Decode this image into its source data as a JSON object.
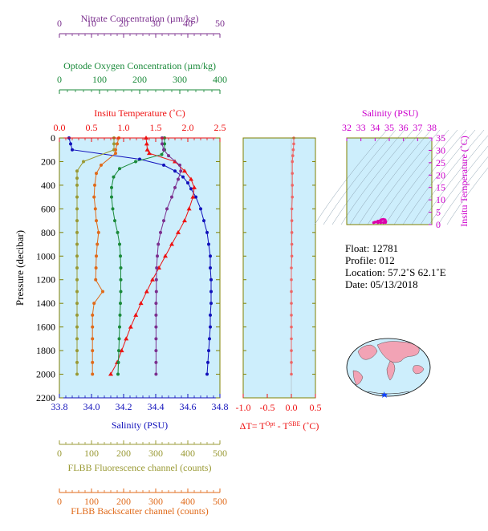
{
  "chart_data": [
    {
      "type": "line",
      "title": "",
      "ylabel": "Pressure (decibar)",
      "ylim": [
        0,
        2200
      ],
      "y_reversed": true,
      "yticks": [
        0,
        200,
        400,
        600,
        800,
        1000,
        1200,
        1400,
        1600,
        1800,
        2000,
        2200
      ],
      "grid": false,
      "axes": [
        {
          "position": "top-1",
          "label": "Nitrate Concentration (µm/kg)",
          "range": [
            0,
            50
          ],
          "ticks": [
            "0",
            "10",
            "20",
            "30",
            "40",
            "50"
          ],
          "color": "#7b2f8e"
        },
        {
          "position": "top-2",
          "label": "Optode Oxygen Concentration (µm/kg)",
          "range": [
            0,
            400
          ],
          "ticks": [
            "0",
            "100",
            "200",
            "300",
            "400"
          ],
          "color": "#1a8a3a"
        },
        {
          "position": "top-3",
          "label": "Insitu Temperature (˚C)",
          "range": [
            0,
            2.5
          ],
          "ticks": [
            "0.0",
            "0.5",
            "1.0",
            "1.5",
            "2.0",
            "2.5"
          ],
          "color": "#ee1111"
        },
        {
          "position": "bottom-1",
          "label": "Salinity (PSU)",
          "range": [
            33.8,
            34.8
          ],
          "ticks": [
            "33.8",
            "34.0",
            "34.2",
            "34.4",
            "34.6",
            "34.8"
          ],
          "color": "#1111bb"
        },
        {
          "position": "bottom-2",
          "label": "FLBB Fluorescence channel (counts)",
          "range": [
            0,
            500
          ],
          "ticks": [
            "0",
            "100",
            "200",
            "300",
            "400",
            "500"
          ],
          "color": "#999933"
        },
        {
          "position": "bottom-3",
          "label": "FLBB Backscatter channel (counts)",
          "range": [
            0,
            500
          ],
          "ticks": [
            "0",
            "100",
            "200",
            "300",
            "400",
            "500"
          ],
          "color": "#e06a1a"
        }
      ],
      "series": [
        {
          "axis": "Salinity",
          "color": "#1111bb",
          "marker": "circle",
          "points": [
            [
              33.86,
              0
            ],
            [
              33.87,
              50
            ],
            [
              33.88,
              100
            ],
            [
              34.3,
              180
            ],
            [
              34.45,
              230
            ],
            [
              34.52,
              280
            ],
            [
              34.57,
              330
            ],
            [
              34.6,
              380
            ],
            [
              34.62,
              430
            ],
            [
              34.65,
              500
            ],
            [
              34.68,
              600
            ],
            [
              34.7,
              700
            ],
            [
              34.72,
              800
            ],
            [
              34.73,
              900
            ],
            [
              34.74,
              1000
            ],
            [
              34.74,
              1100
            ],
            [
              34.745,
              1200
            ],
            [
              34.745,
              1300
            ],
            [
              34.745,
              1400
            ],
            [
              34.74,
              1500
            ],
            [
              34.74,
              1600
            ],
            [
              34.735,
              1700
            ],
            [
              34.73,
              1800
            ],
            [
              34.725,
              1900
            ],
            [
              34.72,
              2000
            ]
          ]
        },
        {
          "axis": "Temperature",
          "color": "#ee1111",
          "marker": "triangle",
          "points": [
            [
              1.35,
              0
            ],
            [
              1.36,
              50
            ],
            [
              1.37,
              100
            ],
            [
              1.4,
              130
            ],
            [
              1.8,
              200
            ],
            [
              1.95,
              280
            ],
            [
              2.05,
              350
            ],
            [
              2.1,
              420
            ],
            [
              2.08,
              500
            ],
            [
              2.02,
              600
            ],
            [
              1.95,
              700
            ],
            [
              1.85,
              800
            ],
            [
              1.75,
              900
            ],
            [
              1.65,
              1000
            ],
            [
              1.55,
              1100
            ],
            [
              1.45,
              1200
            ],
            [
              1.36,
              1300
            ],
            [
              1.27,
              1400
            ],
            [
              1.19,
              1500
            ],
            [
              1.11,
              1600
            ],
            [
              1.04,
              1700
            ],
            [
              0.97,
              1800
            ],
            [
              0.9,
              1900
            ],
            [
              0.8,
              2000
            ]
          ]
        },
        {
          "axis": "Oxygen",
          "color": "#1a8a3a",
          "marker": "circle",
          "points": [
            [
              262,
              0
            ],
            [
              262,
              50
            ],
            [
              262,
              100
            ],
            [
              255,
              140
            ],
            [
              190,
              200
            ],
            [
              150,
              260
            ],
            [
              135,
              330
            ],
            [
              130,
              420
            ],
            [
              130,
              500
            ],
            [
              133,
              600
            ],
            [
              138,
              700
            ],
            [
              145,
              800
            ],
            [
              150,
              900
            ],
            [
              152,
              1000
            ],
            [
              153,
              1100
            ],
            [
              153,
              1200
            ],
            [
              153,
              1300
            ],
            [
              152,
              1400
            ],
            [
              151,
              1500
            ],
            [
              150,
              1600
            ],
            [
              149,
              1700
            ],
            [
              148,
              1800
            ],
            [
              147,
              1900
            ],
            [
              146,
              2000
            ]
          ]
        },
        {
          "axis": "Nitrate",
          "color": "#7b2f8e",
          "marker": "circle",
          "points": [
            [
              32,
              0
            ],
            [
              32,
              50
            ],
            [
              32.5,
              100
            ],
            [
              34,
              150
            ],
            [
              37.5,
              230
            ],
            [
              37.8,
              280
            ],
            [
              37,
              350
            ],
            [
              36,
              420
            ],
            [
              35,
              500
            ],
            [
              33.5,
              600
            ],
            [
              32.5,
              700
            ],
            [
              31.5,
              800
            ],
            [
              30.8,
              900
            ],
            [
              30.5,
              1000
            ],
            [
              30.3,
              1100
            ],
            [
              30.2,
              1200
            ],
            [
              30.2,
              1300
            ],
            [
              30.1,
              1400
            ],
            [
              30.1,
              1500
            ],
            [
              30.1,
              1600
            ],
            [
              30.1,
              1700
            ],
            [
              30.1,
              1800
            ],
            [
              30.1,
              1900
            ],
            [
              30.1,
              2000
            ]
          ]
        },
        {
          "axis": "Fluorescence",
          "color": "#999933",
          "marker": "circle",
          "points": [
            [
              170,
              0
            ],
            [
              170,
              50
            ],
            [
              170,
              100
            ],
            [
              75,
              200
            ],
            [
              55,
              280
            ],
            [
              55,
              340
            ],
            [
              55,
              400
            ],
            [
              55,
              500
            ],
            [
              55,
              600
            ],
            [
              55,
              700
            ],
            [
              55,
              800
            ],
            [
              55,
              900
            ],
            [
              55,
              1000
            ],
            [
              55,
              1100
            ],
            [
              55,
              1200
            ],
            [
              55,
              1300
            ],
            [
              55,
              1400
            ],
            [
              55,
              1500
            ],
            [
              55,
              1600
            ],
            [
              55,
              1700
            ],
            [
              55,
              1800
            ],
            [
              55,
              1900
            ],
            [
              55,
              2000
            ]
          ]
        },
        {
          "axis": "Backscatter",
          "color": "#e06a1a",
          "marker": "circle",
          "points": [
            [
              185,
              0
            ],
            [
              180,
              50
            ],
            [
              175,
              100
            ],
            [
              175,
              130
            ],
            [
              130,
              230
            ],
            [
              115,
              300
            ],
            [
              110,
              400
            ],
            [
              108,
              500
            ],
            [
              112,
              600
            ],
            [
              115,
              700
            ],
            [
              122,
              800
            ],
            [
              118,
              900
            ],
            [
              115,
              1000
            ],
            [
              114,
              1100
            ],
            [
              113,
              1200
            ],
            [
              135,
              1300
            ],
            [
              108,
              1400
            ],
            [
              103,
              1500
            ],
            [
              103,
              1600
            ],
            [
              103,
              1700
            ],
            [
              103,
              1800
            ],
            [
              103,
              1900
            ],
            [
              103,
              2000
            ]
          ]
        }
      ]
    },
    {
      "type": "line",
      "title": "",
      "xlabel": "ΔT= T^Opt - T^SBE (˚C)",
      "xlim": [
        -1.0,
        0.5
      ],
      "xticks": [
        "-1.0",
        "-0.5",
        "0.0",
        "0.5"
      ],
      "ylim": [
        0,
        2200
      ],
      "series": [
        {
          "color": "#ee6666",
          "marker": "circle",
          "points": [
            [
              0.05,
              0
            ],
            [
              0.05,
              50
            ],
            [
              0.04,
              100
            ],
            [
              0.03,
              150
            ],
            [
              0.02,
              200
            ],
            [
              0.02,
              300
            ],
            [
              0.02,
              400
            ],
            [
              0.02,
              500
            ],
            [
              0.01,
              600
            ],
            [
              0.01,
              700
            ],
            [
              0.01,
              800
            ],
            [
              0.01,
              900
            ],
            [
              0.01,
              1000
            ],
            [
              0.0,
              1100
            ],
            [
              0.0,
              1200
            ],
            [
              0.0,
              1300
            ],
            [
              0.0,
              1400
            ],
            [
              0.0,
              1500
            ],
            [
              0.0,
              1600
            ],
            [
              0.0,
              1700
            ],
            [
              0.0,
              1800
            ],
            [
              0.0,
              1900
            ],
            [
              0.0,
              2000
            ]
          ]
        }
      ]
    },
    {
      "type": "scatter",
      "title": "",
      "xlabel": "Salinity (PSU)",
      "ylabel": "Insitu Temperature (˚C)",
      "xlim": [
        32,
        38
      ],
      "ylim": [
        0,
        35
      ],
      "xticks": [
        "32",
        "33",
        "34",
        "35",
        "36",
        "37",
        "38"
      ],
      "yticks": [
        "0",
        "5",
        "10",
        "15",
        "20",
        "25",
        "30",
        "35"
      ],
      "color": "#dd00aa",
      "points": [
        [
          33.9,
          0.8
        ],
        [
          34.0,
          1.0
        ],
        [
          34.2,
          1.4
        ],
        [
          34.4,
          1.8
        ],
        [
          34.5,
          2.0
        ],
        [
          34.6,
          2.1
        ],
        [
          34.7,
          1.9
        ],
        [
          34.72,
          1.5
        ],
        [
          34.74,
          1.2
        ],
        [
          34.74,
          0.9
        ],
        [
          34.2,
          0.8
        ],
        [
          34.4,
          0.8
        ],
        [
          34.6,
          0.8
        ]
      ]
    }
  ],
  "info": {
    "float": "Float:  12781",
    "profile": "Profile:  012",
    "location": "Location:  57.2˚S  62.1˚E",
    "date": "Date:  05/13/2018"
  },
  "map": {
    "marker_lon": 62.1,
    "marker_lat": -57.2,
    "land_color": "#f2a3b5",
    "ocean_color": "#cdeefc",
    "marker_color": "#1144ff"
  },
  "colors": {
    "panel_bg": "#cdeefc",
    "frame": "#808000"
  }
}
